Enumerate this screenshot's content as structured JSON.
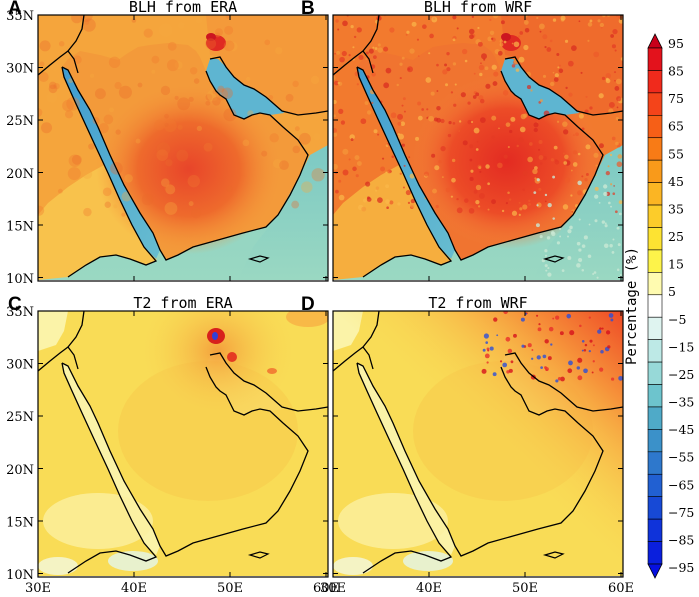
{
  "panels": [
    {
      "letter": "A",
      "title": "BLH from ERA",
      "variant": "era_blh"
    },
    {
      "letter": "B",
      "title": "BLH from WRF",
      "variant": "wrf_blh"
    },
    {
      "letter": "C",
      "title": "T2 from ERA",
      "variant": "era_t2"
    },
    {
      "letter": "D",
      "title": "T2 from WRF",
      "variant": "wrf_t2"
    }
  ],
  "lat_labels": [
    "35N",
    "30N",
    "25N",
    "20N",
    "15N",
    "10N"
  ],
  "lon_labels": [
    "30E",
    "40E",
    "50E",
    "60E"
  ],
  "colorbar": {
    "title": "Percentage (%)",
    "labels": [
      "95",
      "85",
      "75",
      "65",
      "55",
      "45",
      "35",
      "25",
      "15",
      "5",
      "−5",
      "−15",
      "−25",
      "−35",
      "−45",
      "−55",
      "−65",
      "−75",
      "−85",
      "−95"
    ],
    "colors": [
      "#c8001a",
      "#e3121c",
      "#f02a1c",
      "#f4441a",
      "#f65f17",
      "#f87b16",
      "#f99a1a",
      "#fbb523",
      "#fccc2a",
      "#fde332",
      "#fdf34a",
      "#fffbb0",
      "#ffffff",
      "#dff4f0",
      "#bde9e6",
      "#97d9d8",
      "#6dc4cd",
      "#4faac8",
      "#3b91c9",
      "#2e78cc",
      "#2160d2",
      "#1749d6",
      "#0f33da",
      "#0a1fdd",
      "#0610e0"
    ]
  },
  "map_colors": {
    "land_orange": "#f5a53c",
    "land_red": "#e8452a",
    "sea_blue": "#4aa8d3",
    "sea_teal": "#8fd2c6",
    "t2_yellow": "#f9dc56",
    "t2_light": "#fbf3a8"
  }
}
